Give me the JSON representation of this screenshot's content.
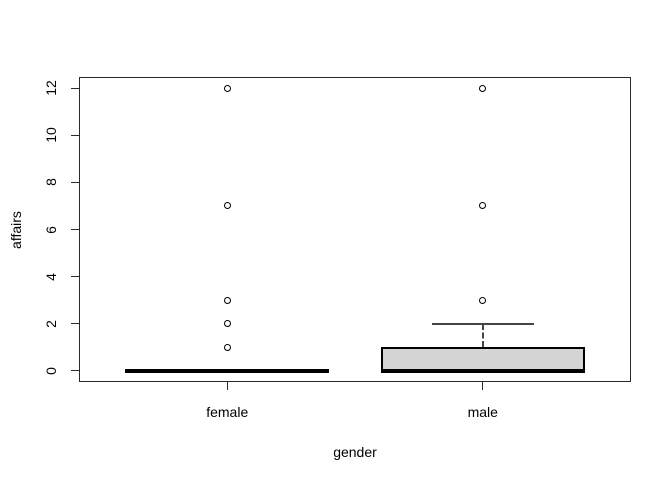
{
  "chart_data": {
    "type": "boxplot",
    "title": "",
    "xlabel": "gender",
    "ylabel": "affairs",
    "categories": [
      "female",
      "male"
    ],
    "y_ticks": [
      0,
      2,
      4,
      6,
      8,
      10,
      12
    ],
    "ylim": [
      0,
      12
    ],
    "grid": false,
    "legend": "none",
    "orientation": "vertical",
    "series": [
      {
        "category": "female",
        "whisker_low": 0,
        "q1": 0,
        "median": 0,
        "q3": 0,
        "whisker_high": 0,
        "outliers": [
          1,
          2,
          3,
          7,
          12
        ]
      },
      {
        "category": "male",
        "whisker_low": 0,
        "q1": 0,
        "median": 0,
        "q3": 1,
        "whisker_high": 2,
        "outliers": [
          3,
          7,
          12
        ]
      }
    ],
    "colors": {
      "box_fill": "#d4d4d4",
      "box_border": "#000000",
      "median": "#000000",
      "whisker": "#444444",
      "axis": "#2a2a2a",
      "text": "#000000",
      "background": "#ffffff"
    }
  }
}
